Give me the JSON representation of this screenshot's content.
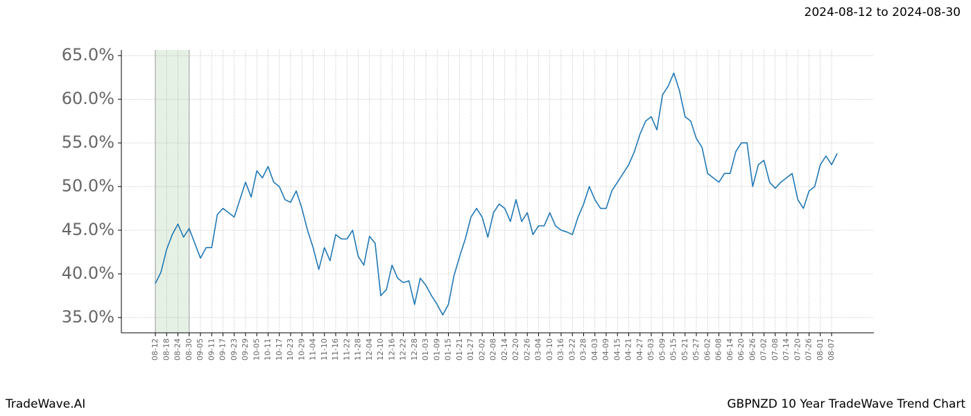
{
  "chart_data": {
    "type": "line",
    "title": "GBPNZD 10 Year TradeWave Trend Chart",
    "subtitle": "2024-08-12 to 2024-08-30",
    "brand": "TradeWave.AI",
    "highlight": {
      "start": "08-12",
      "end": "08-30",
      "color": "#d5e8d4"
    },
    "grid": true,
    "ylim": [
      33.25,
      65.65
    ],
    "yticks": [
      {
        "value": 35,
        "label": "35.0%"
      },
      {
        "value": 40,
        "label": "40.0%"
      },
      {
        "value": 45,
        "label": "45.0%"
      },
      {
        "value": 50,
        "label": "50.0%"
      },
      {
        "value": 55,
        "label": "55.0%"
      },
      {
        "value": 60,
        "label": "60.0%"
      },
      {
        "value": 65,
        "label": "65.0%"
      }
    ],
    "xticks": [
      "08-12",
      "08-18",
      "08-24",
      "08-30",
      "09-05",
      "09-11",
      "09-17",
      "09-23",
      "09-29",
      "10-05",
      "10-11",
      "10-17",
      "10-23",
      "10-29",
      "11-04",
      "11-10",
      "11-16",
      "11-22",
      "11-28",
      "12-04",
      "12-10",
      "12-16",
      "12-22",
      "12-28",
      "01-03",
      "01-09",
      "01-15",
      "01-21",
      "01-27",
      "02-02",
      "02-08",
      "02-14",
      "02-20",
      "02-26",
      "03-04",
      "03-10",
      "03-16",
      "03-22",
      "03-28",
      "04-03",
      "04-09",
      "04-15",
      "04-21",
      "04-27",
      "05-03",
      "05-09",
      "05-15",
      "05-21",
      "05-27",
      "06-02",
      "06-08",
      "06-14",
      "06-20",
      "06-26",
      "07-02",
      "07-08",
      "07-14",
      "07-20",
      "07-26",
      "08-01",
      "08-07"
    ],
    "x": [
      "08-12",
      "08-15",
      "08-18",
      "08-21",
      "08-24",
      "08-27",
      "08-30",
      "09-02",
      "09-05",
      "09-08",
      "09-11",
      "09-14",
      "09-17",
      "09-20",
      "09-23",
      "09-26",
      "09-29",
      "10-02",
      "10-05",
      "10-08",
      "10-11",
      "10-14",
      "10-17",
      "10-20",
      "10-23",
      "10-26",
      "10-29",
      "11-01",
      "11-04",
      "11-07",
      "11-10",
      "11-13",
      "11-16",
      "11-19",
      "11-22",
      "11-25",
      "11-28",
      "12-01",
      "12-04",
      "12-07",
      "12-10",
      "12-13",
      "12-16",
      "12-19",
      "12-22",
      "12-25",
      "12-28",
      "12-31",
      "01-03",
      "01-06",
      "01-09",
      "01-12",
      "01-15",
      "01-18",
      "01-21",
      "01-24",
      "01-27",
      "01-30",
      "02-02",
      "02-05",
      "02-08",
      "02-11",
      "02-14",
      "02-17",
      "02-20",
      "02-23",
      "02-26",
      "03-01",
      "03-04",
      "03-07",
      "03-10",
      "03-13",
      "03-16",
      "03-19",
      "03-22",
      "03-25",
      "03-28",
      "03-31",
      "04-03",
      "04-06",
      "04-09",
      "04-12",
      "04-15",
      "04-18",
      "04-21",
      "04-24",
      "04-27",
      "04-30",
      "05-03",
      "05-06",
      "05-09",
      "05-12",
      "05-15",
      "05-18",
      "05-21",
      "05-24",
      "05-27",
      "05-30",
      "06-02",
      "06-05",
      "06-08",
      "06-11",
      "06-14",
      "06-17",
      "06-20",
      "06-23",
      "06-26",
      "06-29",
      "07-02",
      "07-05",
      "07-08",
      "07-11",
      "07-14",
      "07-17",
      "07-20",
      "07-23",
      "07-26",
      "07-29",
      "08-01",
      "08-04",
      "08-07",
      "08-10"
    ],
    "series": [
      {
        "color": "#1f77b4",
        "values": [
          38.9,
          40.2,
          42.8,
          44.5,
          45.7,
          44.2,
          45.2,
          43.5,
          41.8,
          43.0,
          43.0,
          46.8,
          47.5,
          47.0,
          46.5,
          48.5,
          50.5,
          48.8,
          51.8,
          51.0,
          52.3,
          50.5,
          50.0,
          48.5,
          48.2,
          49.5,
          47.5,
          45.0,
          43.0,
          40.5,
          43.0,
          41.5,
          44.5,
          44.0,
          44.0,
          45.0,
          42.0,
          41.0,
          44.3,
          43.5,
          37.5,
          38.2,
          41.0,
          39.5,
          39.0,
          39.2,
          36.5,
          39.5,
          38.7,
          37.5,
          36.5,
          35.3,
          36.5,
          39.8,
          42.0,
          44.0,
          46.5,
          47.5,
          46.5,
          44.2,
          47.0,
          48.0,
          47.5,
          46.0,
          48.5,
          46.0,
          47.0,
          44.5,
          45.5,
          45.5,
          47.0,
          45.5,
          45.0,
          44.8,
          44.5,
          46.5,
          48.0,
          50.0,
          48.5,
          47.5,
          47.5,
          49.5,
          50.5,
          51.5,
          52.5,
          54.0,
          56.0,
          57.5,
          58.0,
          56.5,
          60.5,
          61.5,
          63.0,
          61.0,
          58.0,
          57.5,
          55.5,
          54.5,
          51.5,
          51.0,
          50.5,
          51.5,
          51.5,
          54.0,
          55.0,
          55.0,
          50.0,
          52.5,
          53.0,
          50.5,
          49.8,
          50.5,
          51.0,
          51.5,
          48.5,
          47.5,
          49.5,
          50.0,
          52.5,
          53.5,
          52.5,
          53.8
        ]
      }
    ]
  }
}
